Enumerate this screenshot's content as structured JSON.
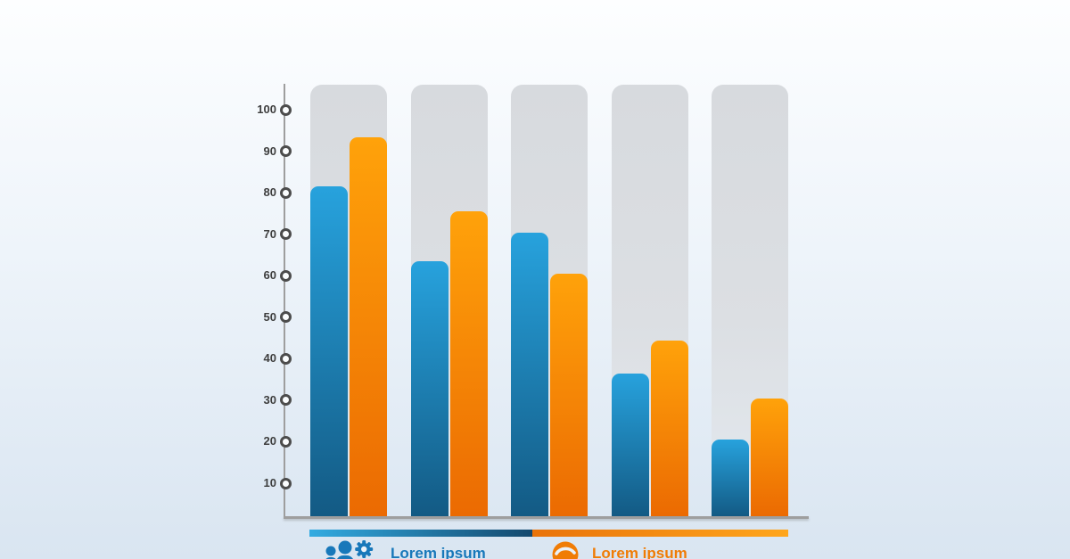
{
  "page": {
    "background_top": "#fdfeff",
    "background_bottom": "#d9e5f1"
  },
  "chart_data": {
    "type": "bar",
    "categories": [
      "",
      "",
      "",
      "",
      ""
    ],
    "series": [
      {
        "name": "Lorem ipsum",
        "values": [
          81,
          63,
          70,
          36,
          20
        ],
        "color_top": "#27a2dd",
        "color_bottom": "#135a84",
        "legend_color": "#1878ba",
        "icon": "team-gear-icon"
      },
      {
        "name": "Lorem ipsum",
        "values": [
          93,
          75,
          60,
          44,
          30
        ],
        "color_top": "#ffa20a",
        "color_bottom": "#eb6a02",
        "legend_color": "#f07c05",
        "icon": "pie-circle-icon"
      }
    ],
    "xlabel": "",
    "ylabel": "",
    "ylim": [
      0,
      100
    ],
    "y_ticks": [
      10,
      20,
      30,
      40,
      50,
      60,
      70,
      80,
      90,
      100
    ],
    "grid": "off",
    "legend_position": "bottom",
    "column_background_color": "#dadde1",
    "axis_color": "#9e9e9e",
    "tick_marker": {
      "ring_color": "#4c4c4c",
      "fill_color": "#fbfdfe"
    },
    "divider": {
      "left_gradient": [
        "#33abe1",
        "#14496e"
      ],
      "right_gradient": [
        "#e9730a",
        "#ffa61c"
      ]
    }
  }
}
